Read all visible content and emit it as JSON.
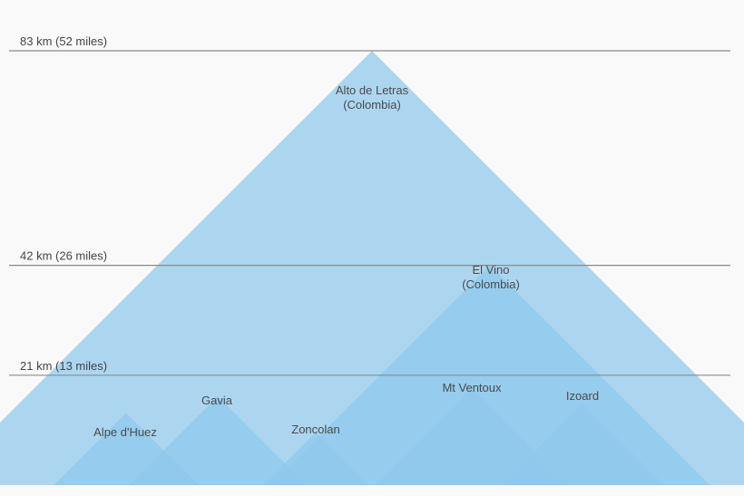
{
  "chart_data": {
    "type": "area",
    "title": "",
    "xlabel": "",
    "ylabel": "",
    "ylim": [
      0,
      83
    ],
    "grid": false,
    "legend": "none",
    "reference_lines": [
      {
        "value": 83,
        "label": "83 km (52 miles)"
      },
      {
        "value": 42,
        "label": "42 km (26 miles)"
      },
      {
        "value": 21,
        "label": "21 km (13 miles)"
      }
    ],
    "series": [
      {
        "name": "Alto de Letras (Colombia)",
        "lines": [
          "Alto de Letras",
          "(Colombia)"
        ],
        "value": 83
      },
      {
        "name": "El Vino (Colombia)",
        "lines": [
          "El Vino",
          "(Colombia)"
        ],
        "value": 42
      },
      {
        "name": "Mt Ventoux",
        "lines": [
          "Mt Ventoux"
        ],
        "value": 18.5
      },
      {
        "name": "Izoard",
        "lines": [
          "Izoard"
        ],
        "value": 15.5
      },
      {
        "name": "Gavia",
        "lines": [
          "Gavia"
        ],
        "value": 17
      },
      {
        "name": "Alpe d'Huez",
        "lines": [
          "Alpe d'Huez"
        ],
        "value": 13.8
      },
      {
        "name": "Zoncolan",
        "lines": [
          "Zoncolan"
        ],
        "value": 10.1
      }
    ]
  },
  "colors": {
    "fill": "#8ec8ec",
    "fill_opacity": 0.72,
    "line": "#8a8a8a",
    "background": "#f9f9f9"
  }
}
